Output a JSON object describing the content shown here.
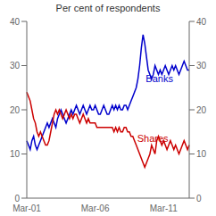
{
  "chart_data": {
    "type": "line",
    "title": "Per cent of respondents",
    "categories": [
      "Mar-01",
      null,
      null,
      null,
      null,
      null,
      null,
      null,
      null,
      null,
      null,
      null,
      null,
      null,
      null,
      null,
      null,
      null,
      null,
      null,
      null,
      null,
      null,
      null,
      null,
      null,
      null,
      null,
      null,
      null,
      null,
      null,
      null,
      null,
      null,
      null,
      null,
      null,
      null,
      null,
      "Mar-06",
      null,
      null,
      null,
      null,
      null,
      null,
      null,
      null,
      null,
      null,
      null,
      null,
      null,
      null,
      null,
      null,
      null,
      null,
      null,
      null,
      null,
      null,
      null,
      null,
      null,
      null,
      null,
      null,
      null,
      null,
      null,
      null,
      null,
      null,
      null,
      null,
      null,
      null,
      null,
      "Mar-11",
      null,
      null,
      null,
      null,
      null,
      null,
      null,
      null,
      null,
      null,
      null,
      null,
      null,
      null,
      null
    ],
    "series": [
      {
        "name": "Banks",
        "color": "#0000cc",
        "values": [
          13,
          12,
          11,
          13,
          14,
          12,
          11,
          12,
          13,
          14,
          15,
          16,
          17,
          16,
          17,
          18,
          17,
          16,
          18,
          19,
          20,
          19,
          18,
          17,
          18,
          19,
          20,
          19,
          20,
          21,
          20,
          19,
          20,
          21,
          20,
          19,
          20,
          21,
          20,
          20,
          21,
          20,
          19,
          19,
          20,
          21,
          20,
          19,
          19,
          20,
          21,
          20,
          21,
          20,
          21,
          20,
          20,
          21,
          21,
          20,
          21,
          22,
          23,
          24,
          25,
          27,
          30,
          34,
          37,
          35,
          32,
          29,
          28,
          27,
          28,
          30,
          29,
          28,
          29,
          28,
          29,
          30,
          29,
          28,
          29,
          30,
          29,
          30,
          29,
          28,
          29,
          30,
          31,
          30,
          29,
          29
        ]
      },
      {
        "name": "Shares",
        "color": "#cc0000",
        "values": [
          24,
          23,
          22,
          20,
          18,
          17,
          15,
          14,
          15,
          14,
          13,
          12,
          12,
          13,
          15,
          17,
          19,
          20,
          19,
          20,
          19,
          18,
          19,
          20,
          19,
          18,
          19,
          18,
          19,
          19,
          18,
          17,
          18,
          19,
          18,
          17,
          18,
          17,
          17,
          17,
          17,
          16,
          16,
          16,
          16,
          16,
          16,
          16,
          16,
          16,
          16,
          15,
          16,
          15,
          16,
          15,
          15,
          16,
          16,
          15,
          15,
          14,
          14,
          13,
          12,
          11,
          10,
          9,
          8,
          7,
          8,
          9,
          10,
          12,
          11,
          10,
          13,
          14,
          13,
          12,
          13,
          12,
          11,
          12,
          13,
          12,
          11,
          12,
          11,
          10,
          11,
          12,
          13,
          12,
          11,
          12
        ]
      }
    ],
    "ylim": [
      0,
      40
    ],
    "yticks": [
      0,
      10,
      20,
      30,
      40
    ],
    "y2lim": [
      0,
      40
    ],
    "y2ticks": [
      0,
      10,
      20,
      30,
      40
    ],
    "grid": false,
    "annotations": [
      {
        "text": "Banks",
        "x": 67,
        "y": 27,
        "color": "#0000cc"
      },
      {
        "text": "Shares",
        "x": 62,
        "y": 13.5,
        "color": "#cc0000"
      }
    ]
  }
}
